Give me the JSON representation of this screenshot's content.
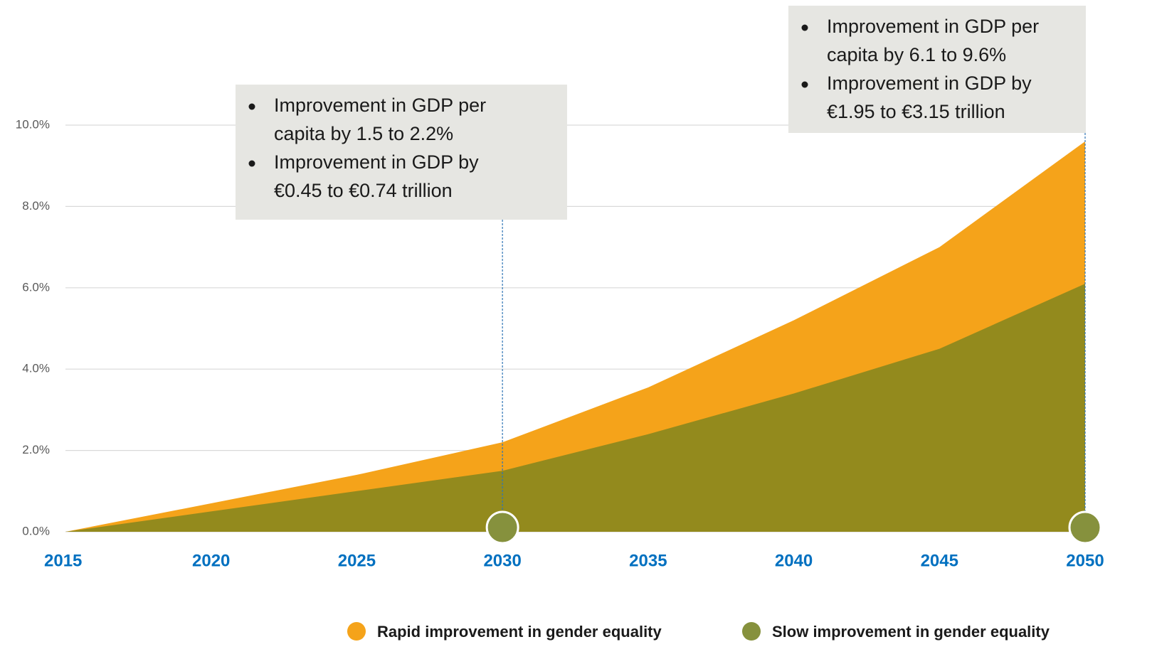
{
  "chart_data": {
    "type": "area",
    "x": [
      2015,
      2020,
      2025,
      2030,
      2035,
      2040,
      2045,
      2050
    ],
    "xlim": [
      2015,
      2050
    ],
    "xticks": [
      2015,
      2020,
      2025,
      2030,
      2035,
      2040,
      2045,
      2050
    ],
    "ylim": [
      0,
      10
    ],
    "yticks": [
      {
        "value": 0,
        "label": "0.0%"
      },
      {
        "value": 2,
        "label": "2.0%"
      },
      {
        "value": 4,
        "label": "4.0%"
      },
      {
        "value": 6,
        "label": "6.0%"
      },
      {
        "value": 8,
        "label": "8.0%"
      },
      {
        "value": 10,
        "label": "10.0%"
      }
    ],
    "grid": true,
    "series": [
      {
        "name": "Rapid improvement in gender equality",
        "color": "#f5a31a",
        "values": [
          0,
          0.7,
          1.4,
          2.2,
          3.55,
          5.2,
          7.0,
          9.6
        ]
      },
      {
        "name": "Slow improvement in gender equality",
        "color": "#938a1d",
        "values": [
          0,
          0.5,
          1.0,
          1.5,
          2.4,
          3.4,
          4.5,
          6.1
        ]
      }
    ],
    "legend": "bottom-right",
    "annotations": [
      {
        "x": 2030,
        "bullets": [
          [
            "Improvement in GDP per",
            "capita by 1.5 to 2.2%"
          ],
          [
            "Improvement in GDP by",
            "€0.45 to €0.74 trillion"
          ]
        ]
      },
      {
        "x": 2050,
        "bullets": [
          [
            "Improvement in GDP per",
            "capita by 6.1 to 9.6%"
          ],
          [
            "Improvement in GDP by",
            "€1.95 to €3.15 trillion"
          ]
        ]
      }
    ]
  }
}
